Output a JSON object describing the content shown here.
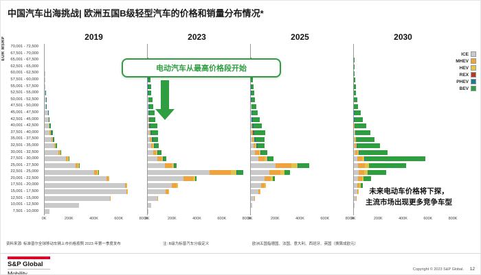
{
  "header": {
    "title": "中国汽车出海挑战| 欧洲五国B级轻型汽车的价格和销量分布情况*"
  },
  "axis": {
    "y_title": "EUR MSRP"
  },
  "callout": {
    "text": "电动汽车从最高价格段开始"
  },
  "annotation": {
    "line1": "未来电动车价格将下探，",
    "line2": "主流市场出现更多竞争车型"
  },
  "footnotes": {
    "source": "资料来源: 标准普尔全球移动车辆上市价格按照 2023 年第一季度发布",
    "note": "注: B级为标普汽车分级定义",
    "scope": "欧洲五国指德国、法国、意大利、西班牙、英国（换算成欧元）"
  },
  "footer": {
    "brand_line1": "S&P Global",
    "brand_line2": "Mobility",
    "copyright": "Copyright © 2023 S&P Global.",
    "page": "12"
  },
  "chart_data": {
    "type": "bar",
    "orientation": "horizontal",
    "stacked": true,
    "title": "欧洲五国B级轻型汽车的价格和销量分布情况",
    "ylabel": "EUR MSRP",
    "xlim": [
      0,
      800
    ],
    "x_tick_labels": [
      "0K",
      "200K",
      "400K",
      "600K",
      "800K"
    ],
    "values_unit": "thousand units (estimated from bar lengths)",
    "legend_position": "right",
    "panels": [
      "2019",
      "2023",
      "2025",
      "2030"
    ],
    "series_names": [
      "ICE",
      "MHEV",
      "HEV",
      "REX",
      "PHEV",
      "BEV"
    ],
    "series_colors": {
      "ICE": "#c9c9c9",
      "MHEV": "#f0a23c",
      "HEV": "#e3c44a",
      "REX": "#b03a2e",
      "PHEV": "#1f7a8c",
      "BEV": "#2f9e41"
    },
    "price_bands": [
      "70,001 - 72,500",
      "67,501 - 70,000",
      "65,001 - 67,500",
      "62,501 - 65,000",
      "60,001 - 62,500",
      "57,501 - 60,000",
      "55,001 - 57,500",
      "52,501 - 55,000",
      "50,001 - 52,500",
      "47,501 - 50,000",
      "45,001 - 47,500",
      "42,501 - 45,000",
      "40,001 - 42,500",
      "37,501 - 40,000",
      "35,001 - 37,500",
      "32,501 - 35,000",
      "30,001 - 32,500",
      "27,501 - 30,000",
      "25,001 - 27,500",
      "22,501 - 25,000",
      "20,001 - 22,500",
      "17,501 - 20,000",
      "15,001 - 17,500",
      "12,501 - 15,000",
      "10,001 - 12,500",
      "7,501 - 10,000"
    ],
    "values": {
      "2019": [
        [
          0,
          0,
          0,
          0,
          0,
          0
        ],
        [
          0,
          0,
          0,
          0,
          0,
          0
        ],
        [
          0,
          0,
          0,
          0,
          0,
          0
        ],
        [
          0,
          0,
          0,
          0,
          0,
          0
        ],
        [
          6,
          0,
          0,
          0,
          0,
          0
        ],
        [
          6,
          0,
          0,
          0,
          0,
          0
        ],
        [
          8,
          0,
          0,
          0,
          0,
          0
        ],
        [
          8,
          0,
          0,
          0,
          2,
          0
        ],
        [
          10,
          0,
          0,
          0,
          3,
          0
        ],
        [
          12,
          0,
          0,
          0,
          3,
          0
        ],
        [
          25,
          0,
          0,
          0,
          5,
          0
        ],
        [
          30,
          0,
          3,
          0,
          5,
          0
        ],
        [
          35,
          0,
          3,
          0,
          5,
          5
        ],
        [
          40,
          5,
          5,
          0,
          5,
          10
        ],
        [
          55,
          5,
          5,
          0,
          5,
          10
        ],
        [
          75,
          8,
          8,
          0,
          0,
          8
        ],
        [
          110,
          10,
          10,
          0,
          0,
          5
        ],
        [
          170,
          12,
          10,
          0,
          0,
          5
        ],
        [
          250,
          15,
          12,
          0,
          0,
          5
        ],
        [
          400,
          20,
          15,
          0,
          0,
          5
        ],
        [
          500,
          15,
          10,
          0,
          0,
          0
        ],
        [
          650,
          10,
          8,
          0,
          0,
          0
        ],
        [
          660,
          8,
          5,
          0,
          0,
          0
        ],
        [
          530,
          5,
          0,
          0,
          0,
          0
        ],
        [
          280,
          0,
          0,
          0,
          0,
          0
        ],
        [
          40,
          0,
          0,
          0,
          0,
          0
        ]
      ],
      "2023": [
        [
          0,
          0,
          0,
          0,
          0,
          0
        ],
        [
          0,
          0,
          0,
          0,
          0,
          0
        ],
        [
          0,
          0,
          0,
          0,
          0,
          8
        ],
        [
          0,
          0,
          0,
          0,
          0,
          0
        ],
        [
          0,
          0,
          0,
          0,
          0,
          12
        ],
        [
          0,
          0,
          0,
          0,
          3,
          18
        ],
        [
          0,
          0,
          0,
          0,
          4,
          22
        ],
        [
          0,
          0,
          0,
          0,
          4,
          26
        ],
        [
          3,
          0,
          0,
          0,
          5,
          30
        ],
        [
          4,
          0,
          0,
          0,
          6,
          35
        ],
        [
          5,
          0,
          0,
          0,
          8,
          40
        ],
        [
          6,
          3,
          0,
          0,
          8,
          45
        ],
        [
          8,
          4,
          0,
          0,
          10,
          55
        ],
        [
          12,
          6,
          4,
          2,
          10,
          48
        ],
        [
          18,
          8,
          5,
          0,
          12,
          40
        ],
        [
          28,
          12,
          8,
          0,
          10,
          32
        ],
        [
          45,
          22,
          10,
          0,
          8,
          28
        ],
        [
          75,
          35,
          14,
          0,
          6,
          22
        ],
        [
          140,
          55,
          18,
          0,
          5,
          18
        ],
        [
          500,
          170,
          45,
          0,
          5,
          55
        ],
        [
          290,
          75,
          20,
          0,
          0,
          10
        ],
        [
          195,
          40,
          10,
          0,
          0,
          0
        ],
        [
          145,
          20,
          5,
          0,
          0,
          0
        ],
        [
          75,
          5,
          0,
          0,
          0,
          0
        ],
        [
          28,
          0,
          0,
          0,
          0,
          0
        ],
        [
          8,
          0,
          0,
          0,
          0,
          0
        ]
      ],
      "2025": [
        [
          0,
          0,
          0,
          0,
          0,
          0
        ],
        [
          0,
          0,
          0,
          0,
          0,
          0
        ],
        [
          0,
          0,
          0,
          0,
          0,
          5
        ],
        [
          0,
          0,
          0,
          0,
          0,
          8
        ],
        [
          0,
          0,
          0,
          0,
          0,
          10
        ],
        [
          0,
          0,
          0,
          0,
          0,
          14
        ],
        [
          0,
          0,
          0,
          0,
          3,
          18
        ],
        [
          0,
          0,
          0,
          0,
          4,
          22
        ],
        [
          0,
          0,
          0,
          0,
          5,
          28
        ],
        [
          3,
          0,
          0,
          0,
          5,
          35
        ],
        [
          4,
          0,
          0,
          0,
          6,
          45
        ],
        [
          5,
          3,
          0,
          0,
          8,
          55
        ],
        [
          6,
          4,
          3,
          0,
          8,
          70
        ],
        [
          8,
          6,
          4,
          2,
          10,
          85
        ],
        [
          12,
          10,
          6,
          0,
          10,
          75
        ],
        [
          20,
          15,
          10,
          0,
          8,
          60
        ],
        [
          35,
          30,
          15,
          0,
          6,
          50
        ],
        [
          60,
          50,
          25,
          0,
          5,
          45
        ],
        [
          200,
          130,
          50,
          0,
          5,
          90
        ],
        [
          150,
          90,
          35,
          0,
          0,
          40
        ],
        [
          110,
          50,
          20,
          0,
          0,
          15
        ],
        [
          85,
          25,
          10,
          0,
          0,
          0
        ],
        [
          60,
          12,
          5,
          0,
          0,
          0
        ],
        [
          30,
          5,
          0,
          0,
          0,
          0
        ],
        [
          12,
          0,
          0,
          0,
          0,
          0
        ],
        [
          0,
          0,
          0,
          0,
          0,
          0
        ]
      ],
      "2030": [
        [
          0,
          0,
          0,
          0,
          0,
          0
        ],
        [
          0,
          0,
          0,
          0,
          0,
          0
        ],
        [
          0,
          0,
          0,
          0,
          0,
          4
        ],
        [
          0,
          0,
          0,
          0,
          0,
          5
        ],
        [
          0,
          0,
          0,
          0,
          0,
          8
        ],
        [
          0,
          0,
          0,
          0,
          0,
          10
        ],
        [
          0,
          0,
          0,
          0,
          0,
          14
        ],
        [
          0,
          0,
          0,
          0,
          0,
          18
        ],
        [
          0,
          0,
          0,
          0,
          0,
          25
        ],
        [
          0,
          0,
          0,
          0,
          0,
          35
        ],
        [
          0,
          0,
          0,
          0,
          3,
          50
        ],
        [
          0,
          0,
          0,
          0,
          4,
          70
        ],
        [
          0,
          3,
          0,
          0,
          4,
          95
        ],
        [
          3,
          4,
          3,
          0,
          5,
          120
        ],
        [
          4,
          6,
          4,
          0,
          5,
          150
        ],
        [
          6,
          10,
          6,
          0,
          5,
          185
        ],
        [
          10,
          18,
          10,
          0,
          4,
          230
        ],
        [
          25,
          40,
          20,
          0,
          4,
          490
        ],
        [
          35,
          55,
          30,
          0,
          3,
          300
        ],
        [
          40,
          45,
          25,
          0,
          0,
          150
        ],
        [
          35,
          30,
          15,
          0,
          0,
          60
        ],
        [
          30,
          15,
          8,
          0,
          0,
          20
        ],
        [
          25,
          8,
          4,
          0,
          0,
          0
        ],
        [
          15,
          4,
          0,
          0,
          0,
          0
        ],
        [
          8,
          0,
          0,
          0,
          0,
          0
        ],
        [
          0,
          0,
          0,
          0,
          0,
          0
        ]
      ]
    }
  }
}
